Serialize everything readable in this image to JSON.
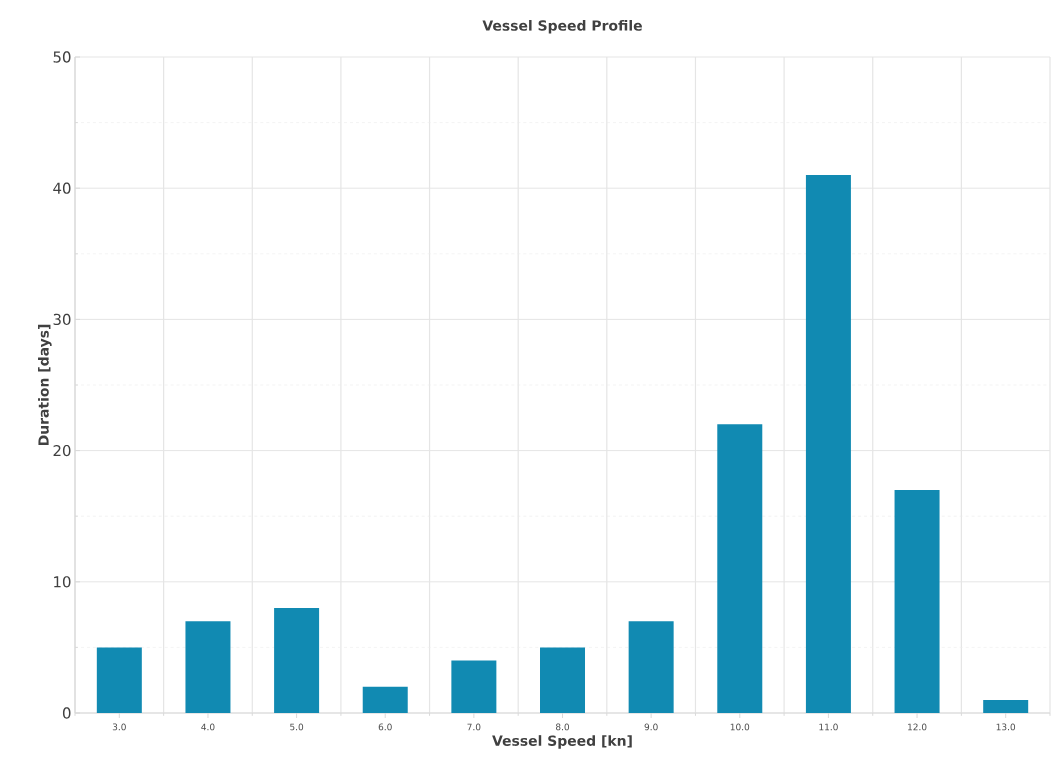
{
  "chart_data": {
    "type": "bar",
    "title": "Vessel Speed Profile",
    "xlabel": "Vessel Speed [kn]",
    "ylabel": "Duration [days]",
    "categories": [
      "3.0",
      "4.0",
      "5.0",
      "6.0",
      "7.0",
      "8.0",
      "9.0",
      "10.0",
      "11.0",
      "12.0",
      "13.0"
    ],
    "values": [
      5,
      7,
      8,
      2,
      4,
      5,
      7,
      22,
      41,
      17,
      1
    ],
    "color": "#118ab2",
    "ylim": [
      0,
      50
    ],
    "yticks": [
      0,
      10,
      20,
      30,
      40,
      50
    ],
    "grid": true
  }
}
